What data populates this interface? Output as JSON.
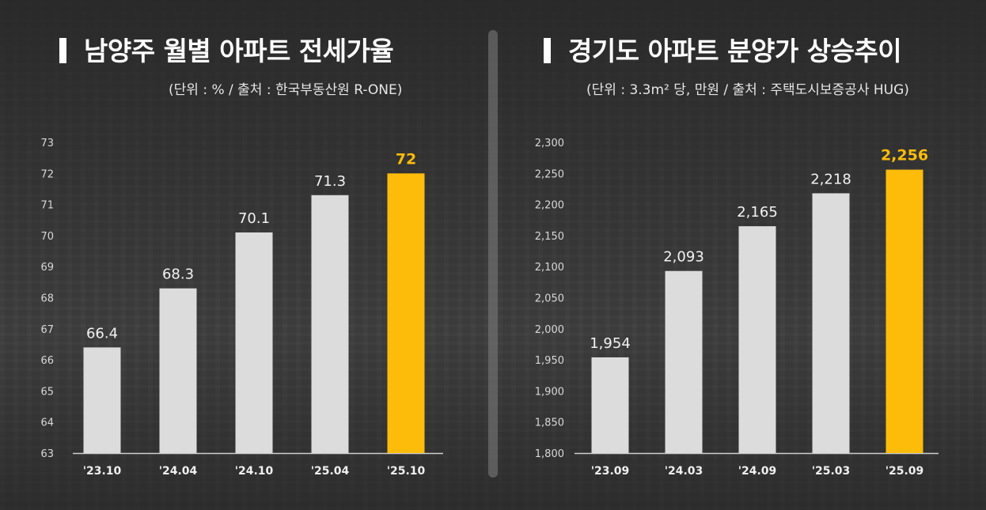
{
  "colors": {
    "bar": "#dcdcdc",
    "highlight": "#fdbc0a",
    "axis_text": "#d8d8d8",
    "label_text": "#f2f2f2"
  },
  "left_panel": {
    "title": "남양주 월별 아파트 전세가율",
    "subtitle": "(단위 : % / 출처 : 한국부동산원 R-ONE)"
  },
  "right_panel": {
    "title": "경기도 아파트 분양가 상승추이",
    "subtitle": "(단위 : 3.3m² 당, 만원 / 출처 : 주택도시보증공사 HUG)"
  },
  "chart_data": [
    {
      "type": "bar",
      "title": "남양주 월별 아파트 전세가율",
      "categories": [
        "'23.10",
        "'24.04",
        "'24.10",
        "'25.04",
        "'25.10"
      ],
      "values": [
        66.4,
        68.3,
        70.1,
        71.3,
        72
      ],
      "value_labels": [
        "66.4",
        "68.3",
        "70.1",
        "71.3",
        "72"
      ],
      "highlight_index": 4,
      "ylim": [
        63,
        73
      ],
      "yticks": [
        63,
        64,
        65,
        66,
        67,
        68,
        69,
        70,
        71,
        72,
        73
      ],
      "ytick_labels": [
        "63",
        "64",
        "65",
        "66",
        "67",
        "68",
        "69",
        "70",
        "71",
        "72",
        "73"
      ],
      "grid": false
    },
    {
      "type": "bar",
      "title": "경기도 아파트 분양가 상승추이",
      "categories": [
        "'23.09",
        "'24.03",
        "'24.09",
        "'25.03",
        "'25.09"
      ],
      "values": [
        1954,
        2093,
        2165,
        2218,
        2256
      ],
      "value_labels": [
        "1,954",
        "2,093",
        "2,165",
        "2,218",
        "2,256"
      ],
      "highlight_index": 4,
      "ylim": [
        1800,
        2300
      ],
      "yticks": [
        1800,
        1850,
        1900,
        1950,
        2000,
        2050,
        2100,
        2150,
        2200,
        2250,
        2300
      ],
      "ytick_labels": [
        "1,800",
        "1,850",
        "1,900",
        "1,950",
        "2,000",
        "2,050",
        "2,100",
        "2,150",
        "2,200",
        "2,250",
        "2,300"
      ],
      "grid": false
    }
  ]
}
